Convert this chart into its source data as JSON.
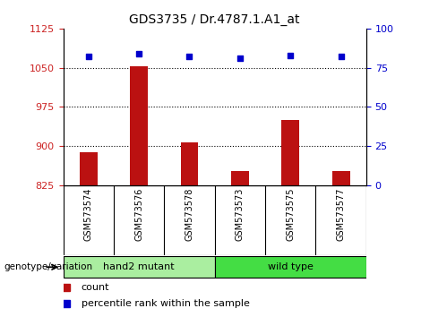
{
  "title": "GDS3735 / Dr.4787.1.A1_at",
  "samples": [
    "GSM573574",
    "GSM573576",
    "GSM573578",
    "GSM573573",
    "GSM573575",
    "GSM573577"
  ],
  "counts": [
    888,
    1052,
    908,
    852,
    950,
    852
  ],
  "percentiles": [
    82,
    84,
    82,
    81,
    83,
    82
  ],
  "group1_label": "hand2 mutant",
  "group1_color": "#AAEEA0",
  "group1_n": 3,
  "group2_label": "wild type",
  "group2_color": "#44DD44",
  "group2_n": 3,
  "ylim_left": [
    825,
    1125
  ],
  "yticks_left": [
    825,
    900,
    975,
    1050,
    1125
  ],
  "ylim_right": [
    0,
    100
  ],
  "yticks_right": [
    0,
    25,
    50,
    75,
    100
  ],
  "bar_color": "#BB1111",
  "dot_color": "#0000CC",
  "bg_color": "#C8C8C8",
  "legend_count_color": "#BB1111",
  "legend_pct_color": "#0000CC",
  "grid_yticks": [
    900,
    975,
    1050
  ],
  "bar_width": 0.35
}
